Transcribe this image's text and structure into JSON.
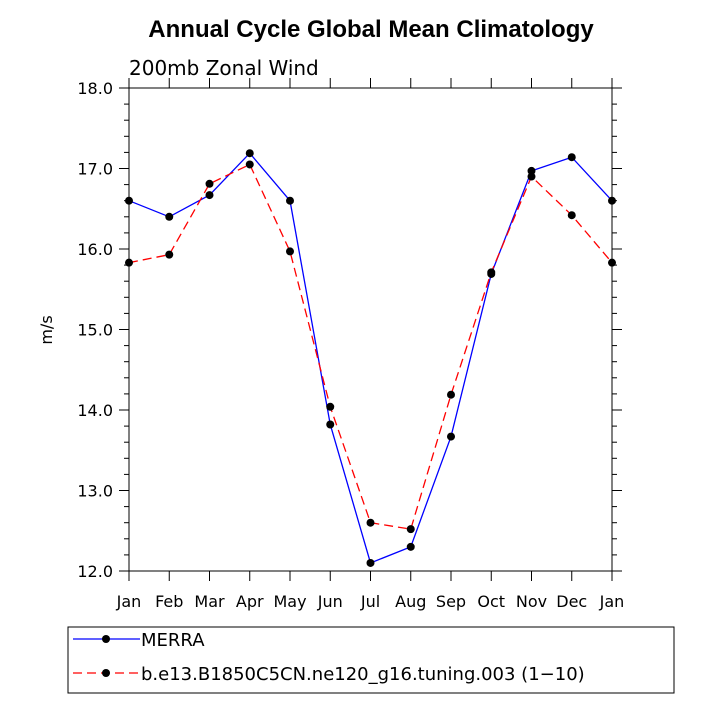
{
  "chart_data": {
    "type": "line",
    "title": "Annual Cycle Global Mean Climatology",
    "subtitle": "200mb Zonal Wind",
    "xlabel": "",
    "ylabel": "m/s",
    "ylim": [
      12.0,
      18.0
    ],
    "yticks": [
      "12.0",
      "13.0",
      "14.0",
      "15.0",
      "16.0",
      "17.0",
      "18.0"
    ],
    "categories": [
      "Jan",
      "Feb",
      "Mar",
      "Apr",
      "May",
      "Jun",
      "Jul",
      "Aug",
      "Sep",
      "Oct",
      "Nov",
      "Dec",
      "Jan"
    ],
    "grid": false,
    "legend_position": "bottom",
    "series": [
      {
        "name": "MERRA",
        "color": "#0000ff",
        "line_style": "solid",
        "marker": "filled-circle",
        "values": [
          16.6,
          16.4,
          16.67,
          17.19,
          16.6,
          13.82,
          12.1,
          12.3,
          13.67,
          15.69,
          16.97,
          17.14,
          16.6
        ]
      },
      {
        "name": "b.e13.B1850C5CN.ne120_g16.tuning.003 (1−10)",
        "color": "#ff0000",
        "line_style": "dashed",
        "marker": "filled-circle",
        "values": [
          15.83,
          15.93,
          16.81,
          17.05,
          15.97,
          14.04,
          12.6,
          12.52,
          14.19,
          15.71,
          16.9,
          16.42,
          15.83
        ]
      }
    ]
  }
}
